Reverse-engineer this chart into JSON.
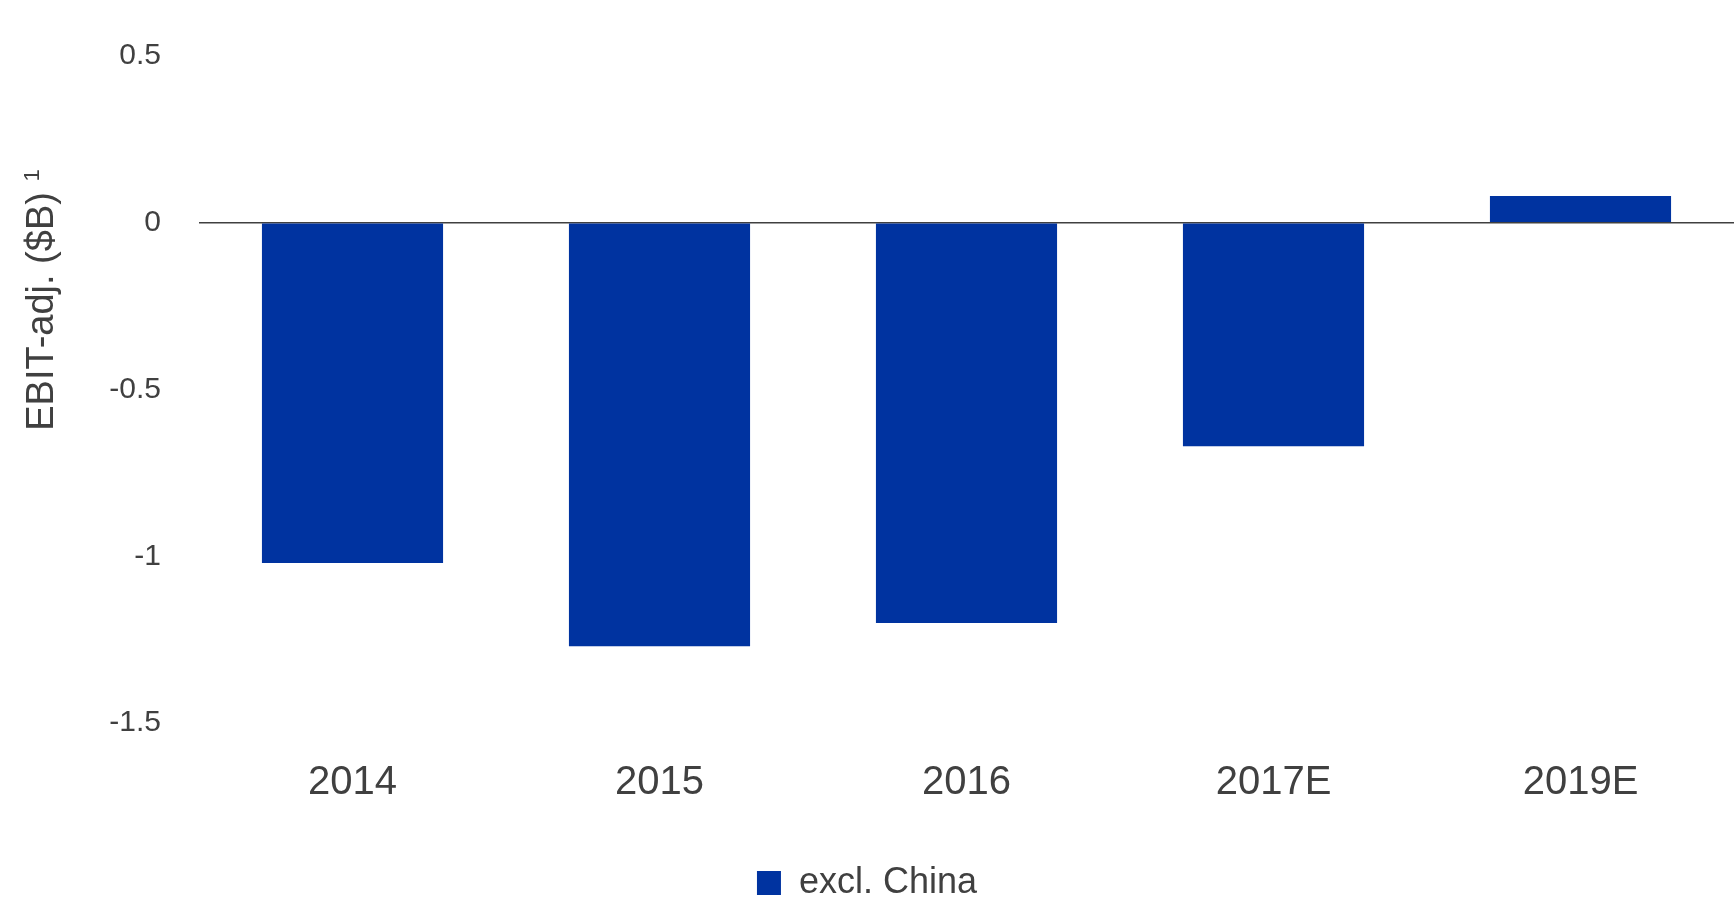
{
  "chart_data": {
    "type": "bar",
    "categories": [
      "2014",
      "2015",
      "2016",
      "2017E",
      "2019E"
    ],
    "series": [
      {
        "name": "excl. China",
        "color": "#0033a0",
        "values": [
          -1.02,
          -1.27,
          -1.2,
          -0.67,
          0.08
        ]
      }
    ],
    "ylabel": "EBIT-adj. ($B) $^{1}$",
    "ylim": [
      -1.5,
      0.5
    ],
    "yticks": [
      -1.5,
      -1,
      -0.5,
      0,
      0.5
    ],
    "legend": "bottom"
  }
}
